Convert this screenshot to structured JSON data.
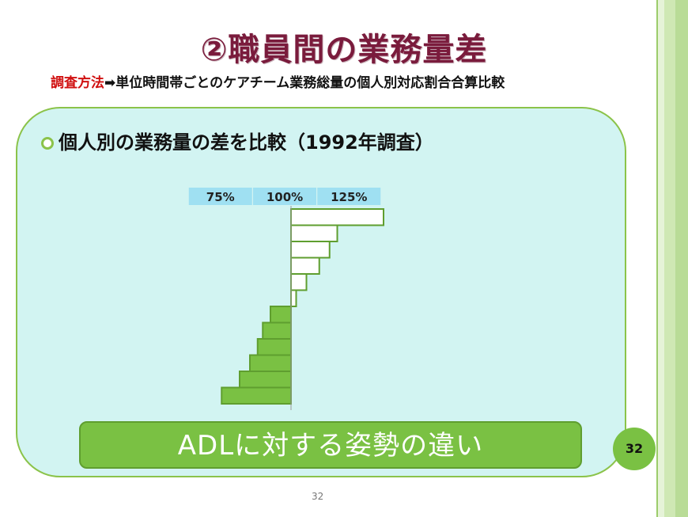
{
  "slide": {
    "title": "②職員間の業務量差",
    "subtitle_lead": "調査方法",
    "subtitle_rest": "➡単位時間帯ごとのケアチーム業務総量の個人別対応割合合算比較",
    "heading": "個人別の業務量の差を比較（1992年調査）",
    "callout": "ADLに対する姿勢の違い",
    "page_number": "32",
    "footer_number": "32"
  },
  "colors": {
    "title": "#7a1b3c",
    "subtitle_lead": "#d01010",
    "panel_bg": "#d2f4f2",
    "accent_green": "#7ac143",
    "tick_box": "#9fe0f2",
    "bar_above": "#ffffff",
    "bar_below": "#7ac143"
  },
  "chart_data": {
    "type": "bar",
    "orientation": "horizontal",
    "baseline": 100,
    "tick_labels": [
      "75%",
      "100%",
      "125%"
    ],
    "tick_values": [
      75,
      100,
      125
    ],
    "values": [
      136,
      118,
      115,
      111,
      106,
      102,
      92,
      89,
      87,
      84,
      80,
      73
    ],
    "xlim": [
      73,
      136
    ],
    "title": "",
    "xlabel": "",
    "ylabel": ""
  }
}
